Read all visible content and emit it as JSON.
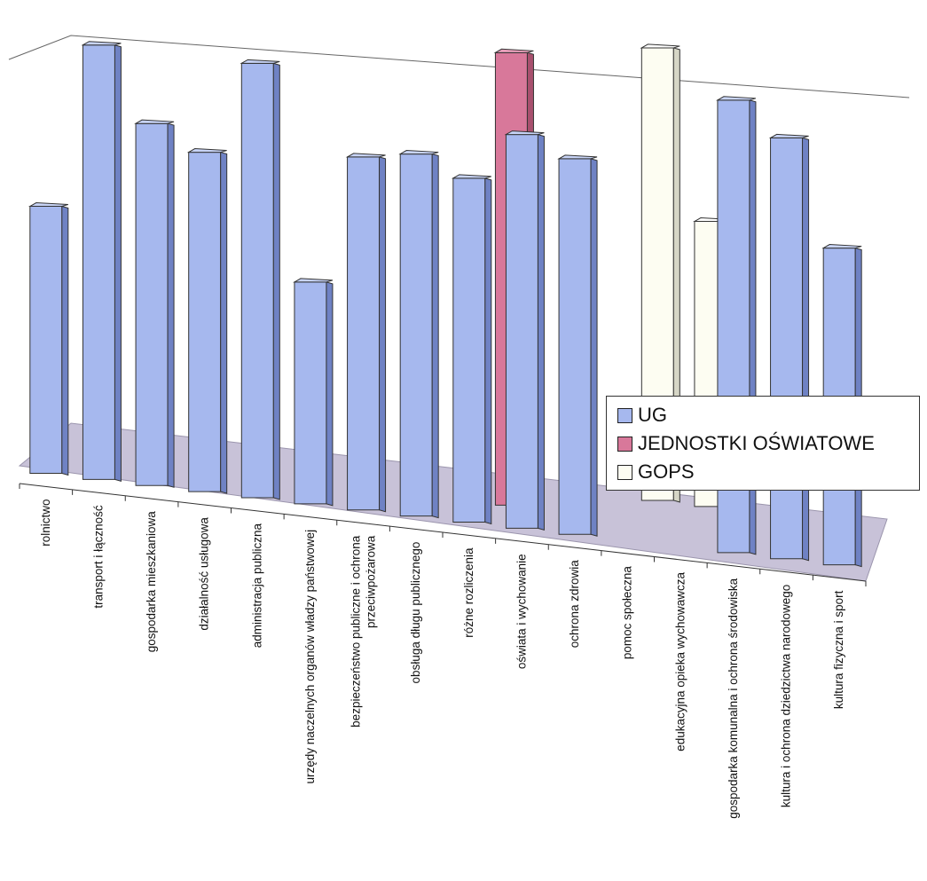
{
  "chart_data": {
    "type": "bar",
    "view": "3d-clustered",
    "title": "",
    "xlabel": "",
    "ylabel": "",
    "grid": false,
    "legend_position": "right",
    "categories": [
      "rolnictwo",
      "transport i łączność",
      "gospodarka mieszkaniowa",
      "działalność usługowa",
      "administracja publiczna",
      "urzędy naczelnych organów władzy państwowej",
      "bezpieczeństwo publiczne i ochrona przeciwpożarowa",
      "obsługa długu publicznego",
      "różne rozliczenia",
      "oświata i wychowanie",
      "ochrona zdrowia",
      "pomoc społeczna",
      "edukacyjna opieka wychowawcza",
      "gospodarka komunalna i ochrona środowiska",
      "kultura i ochrona dziedzictwa narodowego",
      "kultura fizyczna i sport"
    ],
    "series": [
      {
        "name": "UG",
        "color": "#a6b8ee",
        "side_color": "#6f82c4",
        "top_color": "#c8d4f7",
        "values": [
          59,
          96,
          80,
          75,
          96,
          49,
          78,
          80,
          76,
          87,
          83,
          null,
          null,
          100,
          93,
          70
        ]
      },
      {
        "name": "JEDNOSTKI OŚWIATOWE",
        "color": "#d8789a",
        "side_color": "#a8506e",
        "top_color": "#eaa0bb",
        "values": [
          null,
          null,
          null,
          null,
          null,
          null,
          null,
          null,
          null,
          100,
          null,
          null,
          null,
          null,
          null,
          null
        ]
      },
      {
        "name": "GOPS",
        "color": "#fdfdf2",
        "side_color": "#d6d6c6",
        "top_color": "#ffffff",
        "values": [
          null,
          null,
          null,
          null,
          null,
          null,
          null,
          null,
          null,
          null,
          null,
          null,
          100,
          63,
          null,
          null
        ]
      }
    ],
    "ylim": [
      0,
      100
    ]
  }
}
